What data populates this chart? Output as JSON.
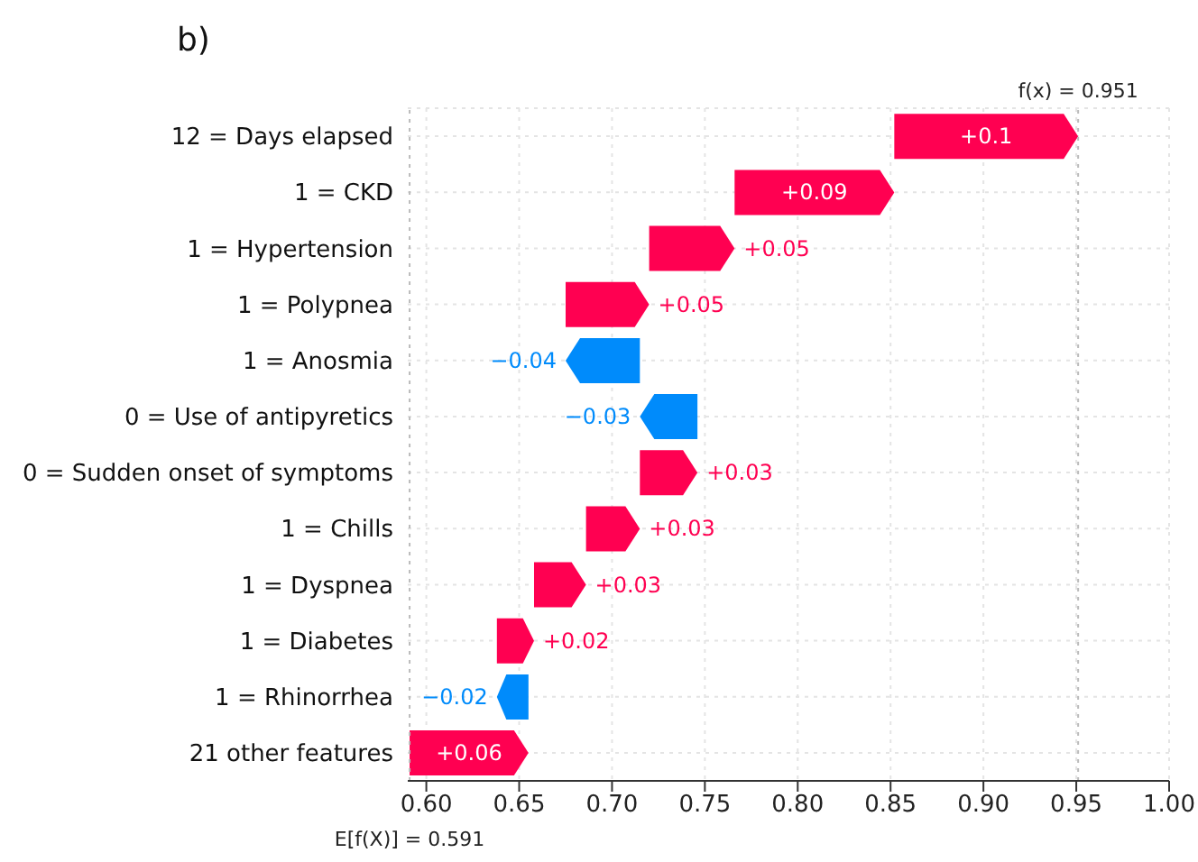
{
  "chart_data": {
    "type": "bar",
    "orientation": "horizontal",
    "title": "b)",
    "categories": [
      "12 = Days elapsed",
      "1 = CKD",
      "1 = Hypertension",
      "1 = Polypnea",
      "1 = Anosmia",
      "0 = Use of antipyretics",
      "0 = Sudden onset of symptoms",
      "1 = Chills",
      "1 = Dyspnea",
      "1 = Diabetes",
      "1 = Rhinorrhea",
      "21 other features"
    ],
    "base": [
      0.852,
      0.766,
      0.72,
      0.675,
      0.715,
      0.746,
      0.715,
      0.686,
      0.658,
      0.638,
      0.655,
      0.591
    ],
    "values": [
      0.099,
      0.086,
      0.046,
      0.045,
      -0.04,
      -0.031,
      0.031,
      0.029,
      0.028,
      0.02,
      -0.017,
      0.064
    ],
    "colors": [
      "#ff0051",
      "#ff0051",
      "#ff0051",
      "#ff0051",
      "#008bfb",
      "#008bfb",
      "#ff0051",
      "#ff0051",
      "#ff0051",
      "#ff0051",
      "#008bfb",
      "#ff0051"
    ],
    "value_labels": [
      "+0.1",
      "+0.09",
      "+0.05",
      "+0.05",
      "−0.04",
      "−0.03",
      "+0.03",
      "+0.03",
      "+0.03",
      "+0.02",
      "−0.02",
      "+0.06"
    ],
    "xlim": [
      0.59,
      1.0
    ],
    "xticks": [
      {
        "value": 0.6,
        "label": "0.60"
      },
      {
        "value": 0.65,
        "label": "0.65"
      },
      {
        "value": 0.7,
        "label": "0.70"
      },
      {
        "value": 0.75,
        "label": "0.75"
      },
      {
        "value": 0.8,
        "label": "0.80"
      },
      {
        "value": 0.85,
        "label": "0.85"
      },
      {
        "value": 0.9,
        "label": "0.90"
      },
      {
        "value": 0.95,
        "label": "0.95"
      },
      {
        "value": 1.0,
        "label": "1.00"
      }
    ],
    "ref_lines": [
      {
        "axis": "x",
        "value": 0.951,
        "label": "f(x) = 0.951",
        "color": "#bbbbbb",
        "line_style": "dotted"
      },
      {
        "axis": "x",
        "value": 0.591,
        "label": "E[f(X)] = 0.591",
        "color": "#bbbbbb",
        "line_style": "dotted"
      }
    ],
    "grid": true,
    "legend": false
  }
}
